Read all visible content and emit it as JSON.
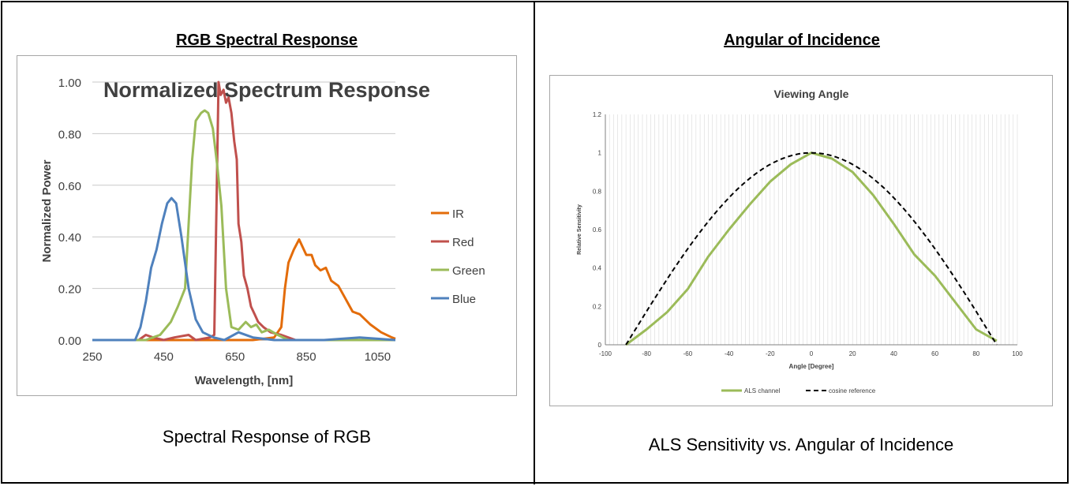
{
  "left_panel": {
    "heading": "RGB Spectral Response",
    "caption": "Spectral Response of RGB"
  },
  "right_panel": {
    "heading": "Angular of Incidence",
    "caption": "ALS Sensitivity vs. Angular of Incidence"
  },
  "chart_data": [
    {
      "type": "line",
      "title": "Normalized Spectrum Response",
      "xlabel": "Wavelength, [nm]",
      "ylabel": "Normalized Power",
      "xlim": [
        250,
        1100
      ],
      "ylim": [
        0,
        1.0
      ],
      "xticks": [
        "250",
        "450",
        "650",
        "850",
        "1050"
      ],
      "yticks": [
        "0.00",
        "0.20",
        "0.40",
        "0.60",
        "0.80",
        "1.00"
      ],
      "grid": "horizontal",
      "legend": "right",
      "series": [
        {
          "name": "IR",
          "color": "#E36C0A",
          "points": [
            [
              250,
              0
            ],
            [
              700,
              0
            ],
            [
              760,
              0.01
            ],
            [
              780,
              0.05
            ],
            [
              790,
              0.2
            ],
            [
              800,
              0.3
            ],
            [
              815,
              0.35
            ],
            [
              830,
              0.39
            ],
            [
              840,
              0.36
            ],
            [
              850,
              0.33
            ],
            [
              865,
              0.33
            ],
            [
              875,
              0.29
            ],
            [
              890,
              0.27
            ],
            [
              905,
              0.28
            ],
            [
              920,
              0.23
            ],
            [
              940,
              0.21
            ],
            [
              960,
              0.16
            ],
            [
              980,
              0.11
            ],
            [
              1000,
              0.1
            ],
            [
              1030,
              0.06
            ],
            [
              1060,
              0.03
            ],
            [
              1090,
              0.01
            ],
            [
              1100,
              0.005
            ]
          ]
        },
        {
          "name": "Red",
          "color": "#C0504D",
          "points": [
            [
              250,
              0
            ],
            [
              380,
              0
            ],
            [
              400,
              0.02
            ],
            [
              420,
              0.01
            ],
            [
              450,
              0.0
            ],
            [
              480,
              0.01
            ],
            [
              520,
              0.02
            ],
            [
              540,
              0.0
            ],
            [
              580,
              0.01
            ],
            [
              592,
              0.02
            ],
            [
              598,
              0.5
            ],
            [
              604,
              1.0
            ],
            [
              610,
              0.95
            ],
            [
              618,
              0.97
            ],
            [
              625,
              0.92
            ],
            [
              632,
              0.94
            ],
            [
              640,
              0.88
            ],
            [
              648,
              0.77
            ],
            [
              655,
              0.7
            ],
            [
              660,
              0.45
            ],
            [
              668,
              0.38
            ],
            [
              675,
              0.25
            ],
            [
              685,
              0.2
            ],
            [
              695,
              0.13
            ],
            [
              705,
              0.1
            ],
            [
              715,
              0.07
            ],
            [
              730,
              0.05
            ],
            [
              750,
              0.03
            ],
            [
              780,
              0.02
            ],
            [
              820,
              0.0
            ],
            [
              1100,
              0
            ]
          ]
        },
        {
          "name": "Green",
          "color": "#9BBB59",
          "points": [
            [
              250,
              0
            ],
            [
              400,
              0
            ],
            [
              420,
              0.01
            ],
            [
              440,
              0.02
            ],
            [
              470,
              0.07
            ],
            [
              490,
              0.13
            ],
            [
              510,
              0.2
            ],
            [
              520,
              0.45
            ],
            [
              530,
              0.7
            ],
            [
              540,
              0.85
            ],
            [
              555,
              0.88
            ],
            [
              565,
              0.89
            ],
            [
              575,
              0.88
            ],
            [
              588,
              0.82
            ],
            [
              600,
              0.68
            ],
            [
              612,
              0.52
            ],
            [
              625,
              0.2
            ],
            [
              640,
              0.05
            ],
            [
              660,
              0.04
            ],
            [
              680,
              0.07
            ],
            [
              695,
              0.05
            ],
            [
              710,
              0.06
            ],
            [
              725,
              0.03
            ],
            [
              745,
              0.04
            ],
            [
              770,
              0.02
            ],
            [
              800,
              0.0
            ],
            [
              1100,
              0
            ]
          ]
        },
        {
          "name": "Blue",
          "color": "#4F81BD",
          "points": [
            [
              250,
              0
            ],
            [
              370,
              0
            ],
            [
              385,
              0.05
            ],
            [
              400,
              0.15
            ],
            [
              415,
              0.28
            ],
            [
              430,
              0.35
            ],
            [
              445,
              0.45
            ],
            [
              460,
              0.53
            ],
            [
              472,
              0.55
            ],
            [
              485,
              0.53
            ],
            [
              500,
              0.4
            ],
            [
              520,
              0.2
            ],
            [
              540,
              0.08
            ],
            [
              560,
              0.03
            ],
            [
              590,
              0.01
            ],
            [
              620,
              0.0
            ],
            [
              660,
              0.03
            ],
            [
              700,
              0.01
            ],
            [
              760,
              0.0
            ],
            [
              900,
              0.0
            ],
            [
              1000,
              0.01
            ],
            [
              1100,
              0
            ]
          ]
        }
      ]
    },
    {
      "type": "line",
      "title": "Viewing Angle",
      "xlabel": "Angle [Degree]",
      "ylabel": "Relative Sensitivity",
      "xlim": [
        -100,
        100
      ],
      "ylim": [
        0,
        1.2
      ],
      "xticks": [
        "-100",
        "-80",
        "-60",
        "-40",
        "-20",
        "0",
        "20",
        "40",
        "60",
        "80",
        "100"
      ],
      "yticks": [
        "0",
        "0.2",
        "0.4",
        "0.6",
        "0.8",
        "1",
        "1.2"
      ],
      "grid": "vertical",
      "legend": "bottom",
      "series": [
        {
          "name": "ALS channel",
          "color": "#9BBB59",
          "style": "solid",
          "points": [
            [
              -90,
              0
            ],
            [
              -80,
              0.08
            ],
            [
              -70,
              0.17
            ],
            [
              -60,
              0.29
            ],
            [
              -50,
              0.46
            ],
            [
              -40,
              0.6
            ],
            [
              -30,
              0.73
            ],
            [
              -20,
              0.85
            ],
            [
              -10,
              0.94
            ],
            [
              0,
              1.0
            ],
            [
              10,
              0.97
            ],
            [
              20,
              0.9
            ],
            [
              30,
              0.78
            ],
            [
              40,
              0.63
            ],
            [
              50,
              0.47
            ],
            [
              60,
              0.36
            ],
            [
              70,
              0.22
            ],
            [
              80,
              0.08
            ],
            [
              90,
              0.02
            ]
          ]
        },
        {
          "name": "cosine reference",
          "color": "#000000",
          "style": "dashed",
          "cosine": true
        }
      ]
    }
  ]
}
